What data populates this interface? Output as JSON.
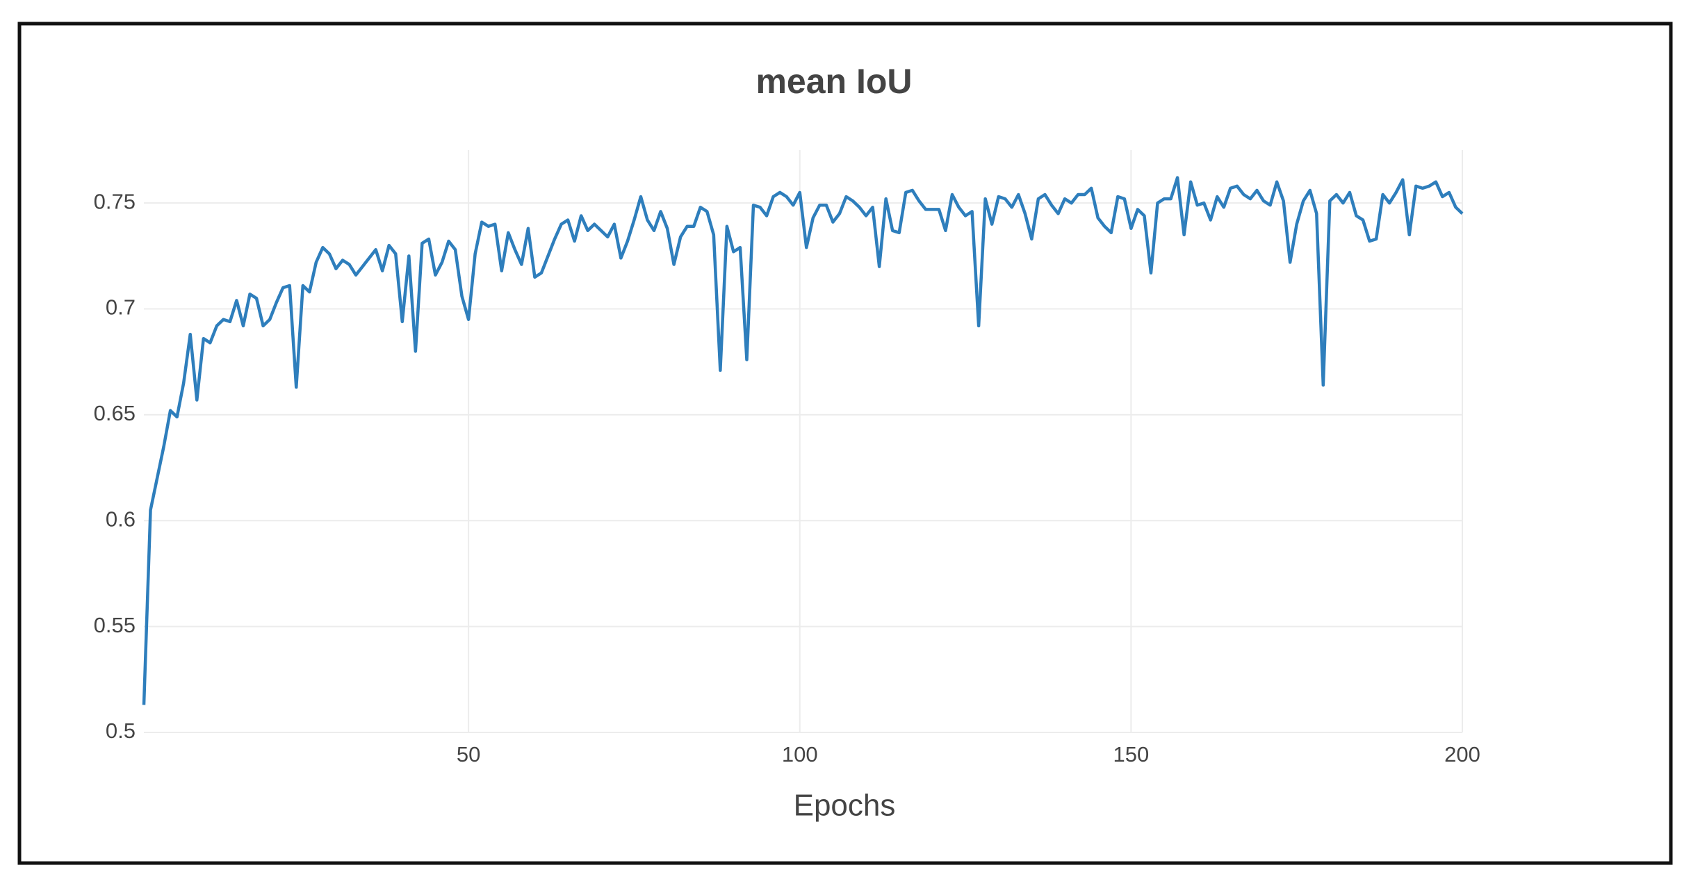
{
  "chart_data": {
    "type": "line",
    "title": "mean IoU",
    "x_label": "Epochs",
    "x": [
      1,
      2,
      3,
      4,
      5,
      6,
      7,
      8,
      9,
      10,
      11,
      12,
      13,
      14,
      15,
      16,
      17,
      18,
      19,
      20,
      21,
      22,
      23,
      24,
      25,
      26,
      27,
      28,
      29,
      30,
      31,
      32,
      33,
      34,
      35,
      36,
      37,
      38,
      39,
      40,
      41,
      42,
      43,
      44,
      45,
      46,
      47,
      48,
      49,
      50,
      51,
      52,
      53,
      54,
      55,
      56,
      57,
      58,
      59,
      60,
      61,
      62,
      63,
      64,
      65,
      66,
      67,
      68,
      69,
      70,
      71,
      72,
      73,
      74,
      75,
      76,
      77,
      78,
      79,
      80,
      81,
      82,
      83,
      84,
      85,
      86,
      87,
      88,
      89,
      90,
      91,
      92,
      93,
      94,
      95,
      96,
      97,
      98,
      99,
      100,
      101,
      102,
      103,
      104,
      105,
      106,
      107,
      108,
      109,
      110,
      111,
      112,
      113,
      114,
      115,
      116,
      117,
      118,
      119,
      120,
      121,
      122,
      123,
      124,
      125,
      126,
      127,
      128,
      129,
      130,
      131,
      132,
      133,
      134,
      135,
      136,
      137,
      138,
      139,
      140,
      141,
      142,
      143,
      144,
      145,
      146,
      147,
      148,
      149,
      150,
      151,
      152,
      153,
      154,
      155,
      156,
      157,
      158,
      159,
      160,
      161,
      162,
      163,
      164,
      165,
      166,
      167,
      168,
      169,
      170,
      171,
      172,
      173,
      174,
      175,
      176,
      177,
      178,
      179,
      180,
      181,
      182,
      183,
      184,
      185,
      186,
      187,
      188,
      189,
      190,
      191,
      192,
      193,
      194,
      195,
      196,
      197,
      198,
      199,
      200
    ],
    "values": [
      0.513,
      0.605,
      0.62,
      0.635,
      0.652,
      0.649,
      0.665,
      0.688,
      0.657,
      0.686,
      0.684,
      0.692,
      0.695,
      0.694,
      0.704,
      0.692,
      0.707,
      0.705,
      0.692,
      0.695,
      0.703,
      0.71,
      0.711,
      0.663,
      0.711,
      0.708,
      0.722,
      0.729,
      0.726,
      0.719,
      0.723,
      0.721,
      0.716,
      0.72,
      0.724,
      0.728,
      0.718,
      0.73,
      0.726,
      0.694,
      0.725,
      0.68,
      0.731,
      0.733,
      0.716,
      0.722,
      0.732,
      0.728,
      0.706,
      0.695,
      0.726,
      0.741,
      0.739,
      0.74,
      0.718,
      0.736,
      0.728,
      0.721,
      0.738,
      0.715,
      0.717,
      0.725,
      0.733,
      0.74,
      0.742,
      0.732,
      0.744,
      0.737,
      0.74,
      0.737,
      0.734,
      0.74,
      0.724,
      0.732,
      0.742,
      0.753,
      0.742,
      0.737,
      0.746,
      0.738,
      0.721,
      0.734,
      0.739,
      0.739,
      0.748,
      0.746,
      0.735,
      0.671,
      0.739,
      0.727,
      0.729,
      0.676,
      0.749,
      0.748,
      0.744,
      0.753,
      0.755,
      0.753,
      0.749,
      0.755,
      0.729,
      0.743,
      0.749,
      0.749,
      0.741,
      0.745,
      0.753,
      0.751,
      0.748,
      0.744,
      0.748,
      0.72,
      0.752,
      0.737,
      0.736,
      0.755,
      0.756,
      0.751,
      0.747,
      0.747,
      0.747,
      0.737,
      0.754,
      0.748,
      0.744,
      0.746,
      0.692,
      0.752,
      0.74,
      0.753,
      0.752,
      0.748,
      0.754,
      0.745,
      0.733,
      0.752,
      0.754,
      0.749,
      0.745,
      0.752,
      0.75,
      0.754,
      0.754,
      0.757,
      0.743,
      0.739,
      0.736,
      0.753,
      0.752,
      0.738,
      0.747,
      0.744,
      0.717,
      0.75,
      0.752,
      0.752,
      0.762,
      0.735,
      0.76,
      0.749,
      0.75,
      0.742,
      0.753,
      0.748,
      0.757,
      0.758,
      0.754,
      0.752,
      0.756,
      0.751,
      0.749,
      0.76,
      0.751,
      0.722,
      0.74,
      0.751,
      0.756,
      0.745,
      0.664,
      0.751,
      0.754,
      0.75,
      0.755,
      0.744,
      0.742,
      0.732,
      0.733,
      0.754,
      0.75,
      0.755,
      0.761,
      0.735,
      0.758,
      0.757,
      0.758,
      0.76,
      0.753,
      0.755,
      0.748,
      0.745
    ],
    "color": "#2e7ebc",
    "xlim": [
      1,
      200
    ],
    "xticks": [
      50,
      100,
      150,
      200
    ],
    "ylim": [
      0.5,
      0.775
    ],
    "yticks": [
      0.5,
      0.55,
      0.6,
      0.65,
      0.7,
      0.75
    ],
    "grid": true
  }
}
